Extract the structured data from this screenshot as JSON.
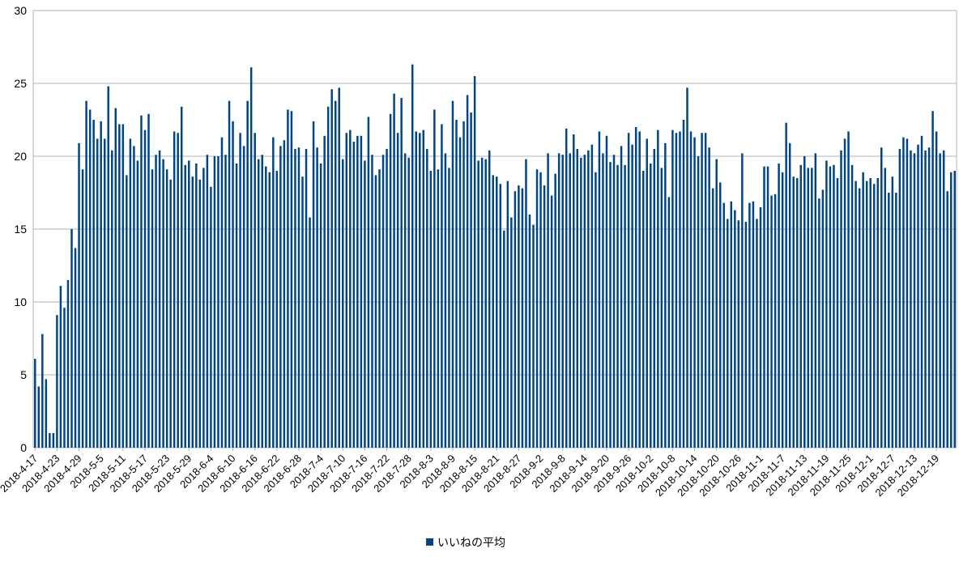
{
  "chart_data": {
    "type": "bar",
    "title": "",
    "xlabel": "",
    "ylabel": "",
    "ylim": [
      0,
      30
    ],
    "yticks": [
      0,
      5,
      10,
      15,
      20,
      25,
      30
    ],
    "grid": "horizontal",
    "legend_position": "bottom-center",
    "start_date": "2018-04-17",
    "tick_labels": [
      "2018-4-17",
      "2018-4-23",
      "2018-4-29",
      "2018-5-5",
      "2018-5-11",
      "2018-5-17",
      "2018-5-23",
      "2018-5-29",
      "2018-6-4",
      "2018-6-10",
      "2018-6-16",
      "2018-6-22",
      "2018-6-28",
      "2018-7-4",
      "2018-7-10",
      "2018-7-16",
      "2018-7-22",
      "2018-7-28",
      "2018-8-3",
      "2018-8-9",
      "2018-8-15",
      "2018-8-21",
      "2018-8-27",
      "2018-9-2",
      "2018-9-8",
      "2018-9-14",
      "2018-9-20",
      "2018-9-26",
      "2018-10-2",
      "2018-10-8",
      "2018-10-14",
      "2018-10-20",
      "2018-10-26",
      "2018-11-1",
      "2018-11-7",
      "2018-11-13",
      "2018-11-19",
      "2018-11-25",
      "2018-12-1",
      "2018-12-7",
      "2018-12-13",
      "2018-12-19"
    ],
    "series": [
      {
        "name": "いいねの平均",
        "color": "#004586",
        "values": [
          6.1,
          4.2,
          7.8,
          4.7,
          1.0,
          1.0,
          9.1,
          11.1,
          9.6,
          11.5,
          15.0,
          13.7,
          20.9,
          19.1,
          23.8,
          23.2,
          22.5,
          21.2,
          22.4,
          21.2,
          24.8,
          20.4,
          23.3,
          22.2,
          22.2,
          18.7,
          21.2,
          20.7,
          19.7,
          22.8,
          21.8,
          22.9,
          19.1,
          20.1,
          20.4,
          19.8,
          19.1,
          18.4,
          21.7,
          21.6,
          23.4,
          19.4,
          19.7,
          18.6,
          19.5,
          18.4,
          19.2,
          20.1,
          17.9,
          20.0,
          20.0,
          21.3,
          20.1,
          23.8,
          22.4,
          19.5,
          21.6,
          20.7,
          23.8,
          26.1,
          21.6,
          19.8,
          20.1,
          19.3,
          18.9,
          21.3,
          19.0,
          20.7,
          21.1,
          23.2,
          23.1,
          20.5,
          20.6,
          18.6,
          20.5,
          15.8,
          22.4,
          20.6,
          19.5,
          21.4,
          23.4,
          24.6,
          23.8,
          24.7,
          19.8,
          21.6,
          21.8,
          21.0,
          21.4,
          21.4,
          19.7,
          22.7,
          20.1,
          18.7,
          19.1,
          20.1,
          20.5,
          22.9,
          24.3,
          21.6,
          24.0,
          20.2,
          19.9,
          26.3,
          21.7,
          21.6,
          21.8,
          20.5,
          19.0,
          23.2,
          19.1,
          22.2,
          20.2,
          19.2,
          23.8,
          22.5,
          21.3,
          22.4,
          24.2,
          23.0,
          25.5,
          19.7,
          19.9,
          19.8,
          20.4,
          18.7,
          18.6,
          18.1,
          14.9,
          18.3,
          15.8,
          17.6,
          18.0,
          17.8,
          19.8,
          16.0,
          15.3,
          19.1,
          18.9,
          18.0,
          20.2,
          17.3,
          18.8,
          20.2,
          20.1,
          21.9,
          20.2,
          21.5,
          20.5,
          19.9,
          20.1,
          20.4,
          20.8,
          18.9,
          21.7,
          20.2,
          21.4,
          19.6,
          20.1,
          19.4,
          20.7,
          19.4,
          21.6,
          20.8,
          22.0,
          21.7,
          19.0,
          21.2,
          19.5,
          20.5,
          21.8,
          19.2,
          20.9,
          17.2,
          21.8,
          21.6,
          21.7,
          22.5,
          24.7,
          21.7,
          21.3,
          20.0,
          21.6,
          21.6,
          20.6,
          17.8,
          19.8,
          18.2,
          16.8,
          15.7,
          16.9,
          16.3,
          15.6,
          20.2,
          15.5,
          16.8,
          16.9,
          15.7,
          16.5,
          19.3,
          19.3,
          17.3,
          17.4,
          19.5,
          18.9,
          22.3,
          20.9,
          18.6,
          18.5,
          19.4,
          20.0,
          19.2,
          19.2,
          20.2,
          17.1,
          17.7,
          19.7,
          19.3,
          19.4,
          18.5,
          20.4,
          21.2,
          21.7,
          19.4,
          18.3,
          17.8,
          18.9,
          18.3,
          18.5,
          18.1,
          18.5,
          20.6,
          19.2,
          17.5,
          18.6,
          17.5,
          20.5,
          21.3,
          21.2,
          20.4,
          20.2,
          20.8,
          21.4,
          20.4,
          20.6,
          23.1,
          21.7,
          20.2,
          20.4,
          17.6,
          18.9,
          19.0
        ]
      }
    ]
  }
}
